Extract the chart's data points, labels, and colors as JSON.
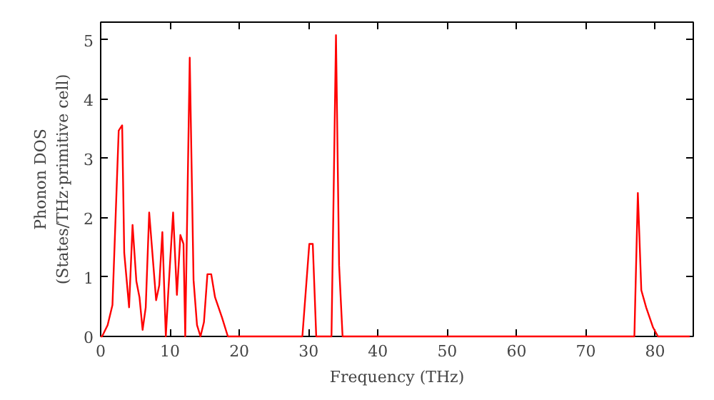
{
  "chart_data": {
    "type": "line",
    "xlabel": "Frequency (THz)",
    "ylabel": "Phonon DOS\n(States/THz·primitive cell)",
    "xlim": [
      0,
      85.5
    ],
    "ylim": [
      0,
      5.3
    ],
    "xticks": [
      0,
      10,
      20,
      30,
      40,
      50,
      60,
      70,
      80
    ],
    "yticks": [
      0,
      1,
      2,
      3,
      4,
      5
    ],
    "grid": false,
    "series": [
      {
        "color": "#ff0000",
        "x": [
          0,
          0.2,
          1.0,
          1.7,
          2.6,
          3.1,
          3.4,
          4.1,
          4.6,
          5.15,
          5.6,
          6.05,
          6.5,
          7.0,
          8.0,
          8.45,
          8.9,
          9.4,
          9.75,
          10.45,
          11.0,
          11.5,
          11.95,
          12.2,
          12.85,
          13.4,
          13.9,
          14.4,
          14.9,
          15.4,
          15.95,
          16.5,
          17.5,
          18.35,
          29.1,
          30.1,
          30.6,
          31.1,
          33.3,
          33.95,
          34.4,
          34.9,
          77.0,
          77.5,
          78.0,
          78.7,
          79.7,
          80.4,
          85
        ],
        "values": [
          0,
          0,
          0.19,
          0.53,
          3.47,
          3.56,
          1.41,
          0.49,
          1.88,
          0.93,
          0.66,
          0.11,
          0.49,
          2.09,
          0.61,
          0.86,
          1.76,
          0,
          0.74,
          2.09,
          0.7,
          1.71,
          1.56,
          0,
          4.7,
          0.95,
          0.19,
          0,
          0.24,
          1.05,
          1.05,
          0.66,
          0.32,
          0,
          0,
          1.56,
          1.56,
          0,
          0,
          5.08,
          1.2,
          0,
          0,
          2.42,
          0.78,
          0.49,
          0.15,
          0,
          0
        ]
      }
    ]
  }
}
